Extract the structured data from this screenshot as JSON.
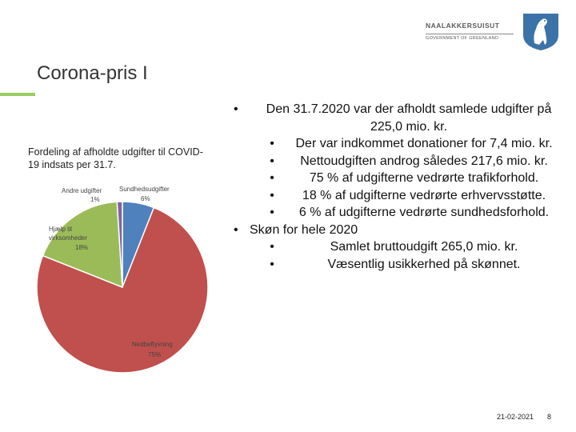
{
  "logo": {
    "name": "NAALAKKERSUISUT",
    "subtitle": "GOVERNMENT OF GREENLAND"
  },
  "slide": {
    "title": "Corona-pris I",
    "footer_date": "21-02-2021",
    "page_number": "8"
  },
  "colors": {
    "accent": "#9acd60",
    "sundhed": "#4f81bd",
    "nedbefly": "#c0504d",
    "hjaelp": "#9bbb59",
    "andre": "#8064a2"
  },
  "chart_data": {
    "type": "pie",
    "title": "Fordeling af afholdte udgifter til COVID-19 indsats per 31.7.",
    "slices": [
      {
        "label": "Sundhedsudgifter",
        "percent_label": "6%",
        "value": 6,
        "color": "#4f81bd"
      },
      {
        "label": "Nedbeflyvning",
        "percent_label": "75%",
        "value": 75,
        "color": "#c0504d"
      },
      {
        "label": "Hjælp til virksomheder",
        "percent_label": "18%",
        "value": 18,
        "color": "#9bbb59"
      },
      {
        "label": "Andre udgifter",
        "percent_label": "1%",
        "value": 1,
        "color": "#8064a2"
      }
    ]
  },
  "bullets": {
    "b1": {
      "text": "Den 31.7.2020 var der afholdt samlede udgifter på 225,0 mio. kr."
    },
    "b1_sub": [
      {
        "text": "Der var indkommet donationer for 7,4 mio. kr."
      },
      {
        "text": "Nettoudgiften androg således 217,6 mio. kr."
      },
      {
        "text": "75 % af udgifterne vedrørte trafikforhold."
      },
      {
        "text": "18 % af udgifterne vedrørte erhvervsstøtte."
      },
      {
        "text": "6 % af udgifterne vedrørte sundhedsforhold."
      }
    ],
    "b2": {
      "text": "Skøn for hele 2020"
    },
    "b2_sub": [
      {
        "text": "Samlet bruttoudgift 265,0 mio. kr."
      },
      {
        "text": "Væsentlig usikkerhed på skønnet."
      }
    ]
  }
}
